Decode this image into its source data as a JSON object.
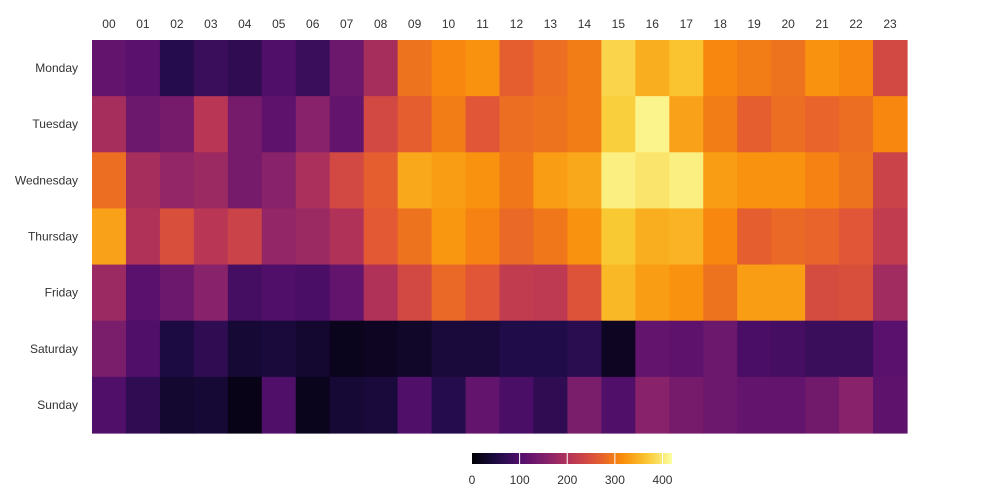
{
  "chart_data": {
    "type": "heatmap",
    "x_categories": [
      "00",
      "01",
      "02",
      "03",
      "04",
      "05",
      "06",
      "07",
      "08",
      "09",
      "10",
      "11",
      "12",
      "13",
      "14",
      "15",
      "16",
      "17",
      "18",
      "19",
      "20",
      "21",
      "22",
      "23"
    ],
    "y_categories": [
      "Monday",
      "Tuesday",
      "Wednesday",
      "Thursday",
      "Friday",
      "Saturday",
      "Sunday"
    ],
    "values": [
      [
        120,
        110,
        60,
        80,
        70,
        100,
        80,
        130,
        190,
        290,
        310,
        320,
        270,
        285,
        300,
        380,
        345,
        365,
        310,
        300,
        290,
        320,
        310,
        240
      ],
      [
        190,
        130,
        140,
        210,
        140,
        115,
        160,
        120,
        240,
        270,
        300,
        260,
        285,
        290,
        300,
        375,
        410,
        335,
        300,
        270,
        285,
        275,
        285,
        310
      ],
      [
        285,
        190,
        170,
        180,
        140,
        160,
        195,
        240,
        270,
        340,
        330,
        320,
        295,
        330,
        340,
        405,
        395,
        405,
        330,
        320,
        320,
        305,
        290,
        230
      ],
      [
        335,
        200,
        250,
        210,
        230,
        170,
        180,
        200,
        265,
        290,
        325,
        305,
        280,
        295,
        320,
        370,
        345,
        350,
        310,
        270,
        280,
        275,
        260,
        220
      ],
      [
        180,
        110,
        130,
        160,
        90,
        100,
        95,
        120,
        200,
        240,
        280,
        260,
        220,
        215,
        255,
        355,
        330,
        320,
        290,
        330,
        330,
        245,
        250,
        185
      ],
      [
        145,
        100,
        50,
        70,
        40,
        45,
        35,
        20,
        25,
        30,
        45,
        45,
        55,
        55,
        65,
        25,
        120,
        115,
        130,
        95,
        90,
        80,
        80,
        110
      ],
      [
        100,
        70,
        35,
        40,
        15,
        100,
        20,
        40,
        45,
        100,
        60,
        120,
        95,
        70,
        145,
        100,
        160,
        140,
        130,
        120,
        120,
        135,
        160,
        115
      ]
    ],
    "color_scale": "inferno",
    "range": [
      0,
      420
    ],
    "legend": {
      "position": "bottom-center",
      "ticks": [
        0,
        100,
        200,
        300,
        400
      ]
    },
    "grid": false
  }
}
